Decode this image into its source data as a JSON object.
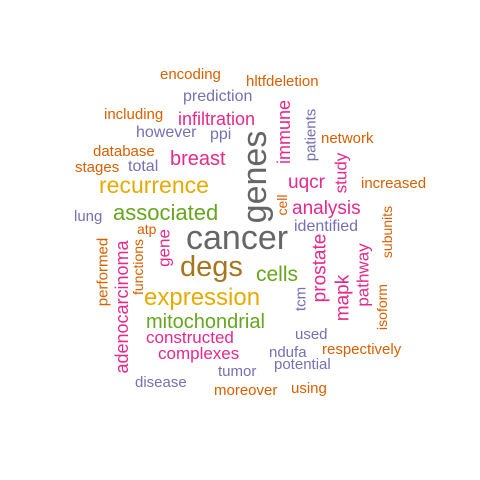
{
  "palette": {
    "orange": "#d95f02",
    "purple": "#7570b3",
    "magenta": "#e7298a",
    "green": "#66a61e",
    "gold": "#e6ab02",
    "brown": "#a6761d",
    "gray": "#666666"
  },
  "words": {
    "cancer": "cancer",
    "genes": "genes",
    "degs": "degs",
    "expression": "expression",
    "recurrence": "recurrence",
    "associated": "associated",
    "mitochondrial": "mitochondrial",
    "cells": "cells",
    "breast": "breast",
    "analysis": "analysis",
    "prostate": "prostate",
    "infiltration": "infiltration",
    "uqcr": "uqcr",
    "immune": "immune",
    "study": "study",
    "mapk": "mapk",
    "pathway": "pathway",
    "complexes": "complexes",
    "constructed": "constructed",
    "adenocarcinoma": "adenocarcinoma",
    "gene": "gene",
    "identified": "identified",
    "patients": "patients",
    "network": "network",
    "increased": "increased",
    "encoding": "encoding",
    "hltfdeletion": "hltfdeletion",
    "prediction": "prediction",
    "including": "including",
    "however": "however",
    "ppi": "ppi",
    "database": "database",
    "stages": "stages",
    "total": "total",
    "lung": "lung",
    "atp": "atp",
    "functions": "functions",
    "performed": "performed",
    "cell": "cell",
    "tcm": "tcm",
    "subunits": "subunits",
    "isoform": "isoform",
    "used": "used",
    "ndufa": "ndufa",
    "respectively": "respectively",
    "potential": "potential",
    "tumor": "tumor",
    "disease": "disease",
    "moreover": "moreover",
    "using": "using"
  }
}
